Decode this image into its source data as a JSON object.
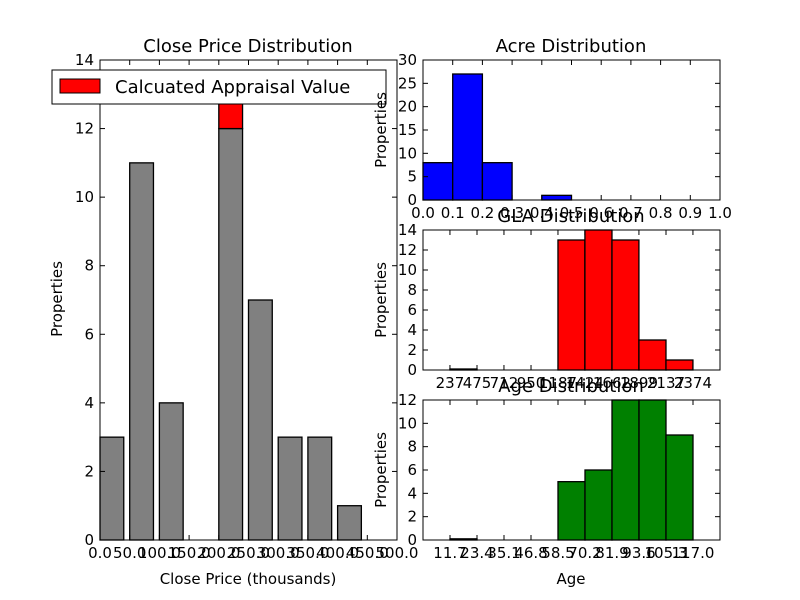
{
  "chart_data": [
    {
      "id": "close_price",
      "type": "bar",
      "title": "Close Price Distribution",
      "xlabel": "Close Price (thousands)",
      "ylabel": "Properties",
      "xlim": [
        0,
        500
      ],
      "ylim": [
        0,
        14
      ],
      "xticks": [
        "0.0",
        "50.0",
        "100.0",
        "150.0",
        "200.0",
        "250.0",
        "300.0",
        "350.0",
        "400.0",
        "450.0",
        "500.0"
      ],
      "yticks": [
        "0",
        "2",
        "4",
        "6",
        "8",
        "10",
        "12",
        "14"
      ],
      "bars": [
        {
          "x": 0,
          "value": 3,
          "color": "#808080"
        },
        {
          "x": 50,
          "value": 11,
          "color": "#808080"
        },
        {
          "x": 100,
          "value": 4,
          "color": "#808080"
        },
        {
          "x": 200,
          "value": 12,
          "color": "#808080"
        },
        {
          "x": 250,
          "value": 7,
          "color": "#808080"
        },
        {
          "x": 300,
          "value": 3,
          "color": "#808080"
        },
        {
          "x": 350,
          "value": 3,
          "color": "#808080"
        },
        {
          "x": 400,
          "value": 1,
          "color": "#808080"
        }
      ],
      "highlight": {
        "x": 200,
        "base": 12,
        "value": 1,
        "color": "#ff0000"
      },
      "legend": {
        "label": "Calcuated Appraisal Value",
        "color": "#ff0000",
        "placement": "top"
      }
    },
    {
      "id": "acre",
      "type": "bar",
      "title": "Acre Distribution",
      "xlabel": "",
      "ylabel": "Properties",
      "xlim": [
        0,
        1
      ],
      "ylim": [
        0,
        30
      ],
      "xticks": [
        "0.0",
        "0.1",
        "0.2",
        "0.3",
        "0.4",
        "0.5",
        "0.6",
        "0.7",
        "0.8",
        "0.9",
        "1.0"
      ],
      "yticks": [
        "0",
        "5",
        "10",
        "15",
        "20",
        "25",
        "30"
      ],
      "color": "#0000ff",
      "bins": [
        {
          "start": 0.0,
          "end": 0.1,
          "value": 8
        },
        {
          "start": 0.1,
          "end": 0.2,
          "value": 27
        },
        {
          "start": 0.2,
          "end": 0.3,
          "value": 8
        },
        {
          "start": 0.3,
          "end": 0.4,
          "value": 0
        },
        {
          "start": 0.4,
          "end": 0.5,
          "value": 1
        }
      ]
    },
    {
      "id": "gla",
      "type": "bar",
      "title": "GLA Distribution",
      "xlabel": "",
      "ylabel": "Properties",
      "xlim": [
        0,
        2612
      ],
      "ylim": [
        0,
        14
      ],
      "xticks": [
        "237",
        "475",
        "712",
        "950",
        "1187",
        "1424",
        "1662",
        "1899",
        "2137",
        "2374"
      ],
      "xtick_values": [
        237,
        475,
        712,
        950,
        1187,
        1424,
        1662,
        1899,
        2137,
        2374
      ],
      "yticks": [
        "0",
        "2",
        "4",
        "6",
        "8",
        "10",
        "12",
        "14"
      ],
      "color": "#ff0000",
      "bins": [
        {
          "start": 237,
          "end": 475,
          "value": 0.1
        },
        {
          "start": 1187,
          "end": 1424,
          "value": 13
        },
        {
          "start": 1424,
          "end": 1662,
          "value": 14
        },
        {
          "start": 1662,
          "end": 1899,
          "value": 13
        },
        {
          "start": 1899,
          "end": 2137,
          "value": 3
        },
        {
          "start": 2137,
          "end": 2374,
          "value": 1
        }
      ]
    },
    {
      "id": "age",
      "type": "bar",
      "title": "Age Distribution",
      "xlabel": "Age",
      "ylabel": "Properties",
      "xlim": [
        0,
        128.7
      ],
      "ylim": [
        0,
        12
      ],
      "xticks": [
        "11.7",
        "23.4",
        "35.1",
        "46.8",
        "58.5",
        "70.2",
        "81.9",
        "93.6",
        "105.3",
        "117.0"
      ],
      "xtick_values": [
        11.7,
        23.4,
        35.1,
        46.8,
        58.5,
        70.2,
        81.9,
        93.6,
        105.3,
        117.0
      ],
      "yticks": [
        "0",
        "2",
        "4",
        "6",
        "8",
        "10",
        "12"
      ],
      "color": "#008000",
      "bins": [
        {
          "start": 11.7,
          "end": 23.4,
          "value": 0.1
        },
        {
          "start": 58.5,
          "end": 70.2,
          "value": 5
        },
        {
          "start": 70.2,
          "end": 81.9,
          "value": 6
        },
        {
          "start": 81.9,
          "end": 93.6,
          "value": 12
        },
        {
          "start": 93.6,
          "end": 105.3,
          "value": 12
        },
        {
          "start": 105.3,
          "end": 117.0,
          "value": 9
        }
      ]
    }
  ]
}
